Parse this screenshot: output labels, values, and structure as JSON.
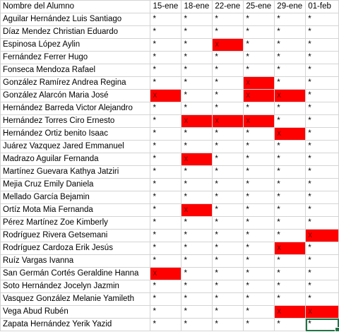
{
  "sheet": {
    "header": {
      "name": "Nombre del Alumno",
      "dates": [
        "15-ene",
        "18-ene",
        "22-ene",
        "25-ene",
        "29-ene",
        "01-feb"
      ]
    },
    "present_mark": "*",
    "absent_mark": "x",
    "colors": {
      "absent_fill": "#ff0000",
      "grid": "#d4d4d4",
      "selection": "#217346"
    },
    "rows": [
      {
        "name": "Aguilar Hernández Luis Santiago",
        "marks": [
          "*",
          "*",
          "*",
          "*",
          "*",
          "*"
        ]
      },
      {
        "name": "Díaz Mendez Christian Eduardo",
        "marks": [
          "*",
          "*",
          "*",
          "*",
          "*",
          "*"
        ]
      },
      {
        "name": "Espinosa López Aylin",
        "marks": [
          "*",
          "*",
          "x",
          "*",
          "*",
          "*"
        ]
      },
      {
        "name": "Fernández Ferrer Hugo",
        "marks": [
          "*",
          "*",
          "*",
          "*",
          "*",
          "*"
        ]
      },
      {
        "name": "Fonseca Mendoza Rafael",
        "marks": [
          "*",
          "*",
          "*",
          "*",
          "*",
          "*"
        ]
      },
      {
        "name": "González Ramírez Andrea Regina",
        "marks": [
          "*",
          "*",
          "*",
          "x",
          "*",
          "*"
        ]
      },
      {
        "name": "González Alarcón Maria José",
        "marks": [
          "x",
          "*",
          "*",
          "x",
          "x",
          "*"
        ]
      },
      {
        "name": "Hernández Barreda Victor Alejandro",
        "marks": [
          "*",
          "*",
          "*",
          "*",
          "*",
          "*"
        ]
      },
      {
        "name": "Hernández Torres Ciro Ernesto",
        "marks": [
          "*",
          "x",
          "x",
          "x",
          "*",
          "*"
        ]
      },
      {
        "name": "Hernández Ortiz benito Isaac",
        "marks": [
          "*",
          "*",
          "*",
          "*",
          "x",
          "*"
        ]
      },
      {
        "name": "Juárez Vazquez Jared Emmanuel",
        "marks": [
          "*",
          "*",
          "*",
          "*",
          "*",
          "*"
        ]
      },
      {
        "name": "Madrazo Aguilar Fernanda",
        "marks": [
          "*",
          "x",
          "*",
          "*",
          "*",
          "*"
        ]
      },
      {
        "name": "Martínez Guevara Kathya Jatziri",
        "marks": [
          "*",
          "*",
          "*",
          "*",
          "*",
          "*"
        ]
      },
      {
        "name": "Mejia Cruz Emily Daniela",
        "marks": [
          "*",
          "*",
          "*",
          "*",
          "*",
          "*"
        ]
      },
      {
        "name": "Mellado García Bejamin",
        "marks": [
          "*",
          "*",
          "*",
          "*",
          "*",
          "*"
        ]
      },
      {
        "name": "Ortíz Mota Mia Fernanda",
        "marks": [
          "*",
          "x",
          "*",
          "*",
          "*",
          "*"
        ]
      },
      {
        "name": "Pérez Martínez Zoe Kimberly",
        "marks": [
          "*",
          "*",
          "*",
          "*",
          "*",
          "*"
        ]
      },
      {
        "name": "Rodríguez Rivera Getsemani",
        "marks": [
          "*",
          "*",
          "*",
          "*",
          "*",
          "x"
        ]
      },
      {
        "name": "Rodríguez Cardoza Erik Jesús",
        "marks": [
          "*",
          "*",
          "*",
          "*",
          "x",
          "*"
        ]
      },
      {
        "name": "Ruíz Vargas Ivanna",
        "marks": [
          "*",
          "*",
          "*",
          "*",
          "*",
          "*"
        ]
      },
      {
        "name": "San Germán Cortés Geraldine Hanna",
        "marks": [
          "x",
          "*",
          "*",
          "*",
          "*",
          "*"
        ]
      },
      {
        "name": "Soto Hernández Jocelyn Jazmin",
        "marks": [
          "*",
          "*",
          "*",
          "*",
          "*",
          "*"
        ]
      },
      {
        "name": "Vasquez González Melanie Yamileth",
        "marks": [
          "*",
          "*",
          "*",
          "*",
          "*",
          "*"
        ]
      },
      {
        "name": "Vega Abud Rubén",
        "marks": [
          "*",
          "*",
          "*",
          "*",
          "x",
          "x"
        ]
      },
      {
        "name": "Zapata Hernández Yerik Yazid",
        "marks": [
          "*",
          "*",
          "*",
          "*",
          "*",
          "*"
        ]
      }
    ]
  }
}
